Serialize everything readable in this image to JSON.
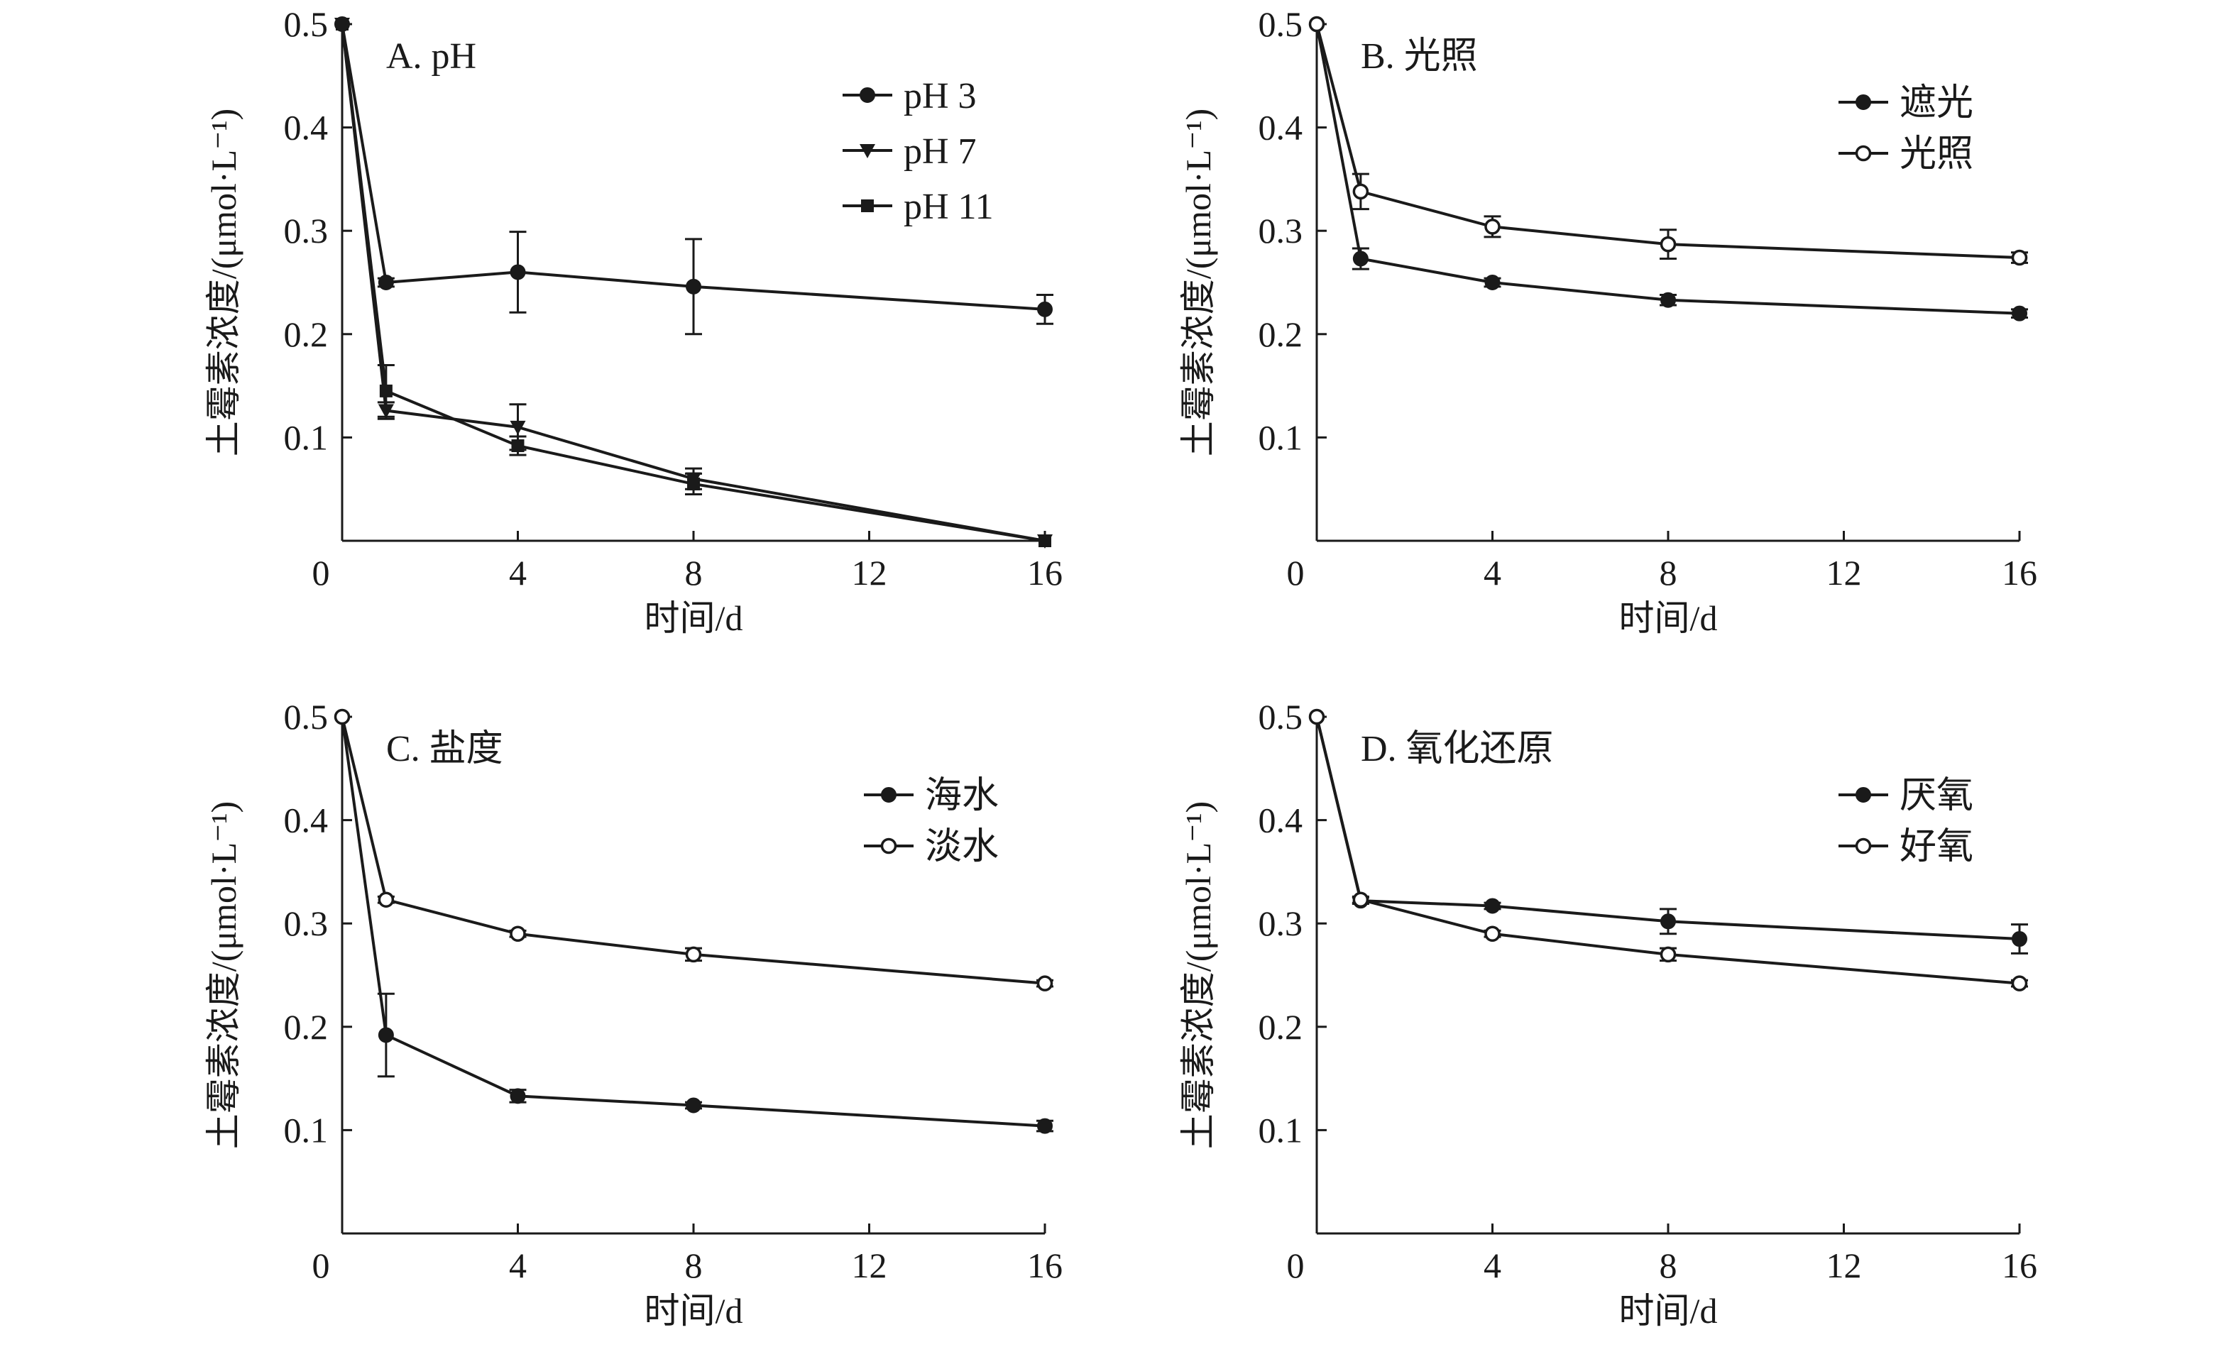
{
  "chart_data": [
    {
      "type": "line",
      "title": "A. pH",
      "xlabel": "时间/d",
      "ylabel": "土霉素浓度/(μmol·L⁻¹)",
      "xlim": [
        0,
        16
      ],
      "ylim": [
        0,
        0.5
      ],
      "xticks": [
        "0",
        "4",
        "8",
        "12",
        "16"
      ],
      "yticks": [
        "0.1",
        "0.2",
        "0.3",
        "0.4",
        "0.5"
      ],
      "legend_position": "top-right",
      "series": [
        {
          "name": "pH 3",
          "marker": "filled-circle",
          "x": [
            0,
            1,
            4,
            8,
            16
          ],
          "y": [
            0.5,
            0.25,
            0.26,
            0.246,
            0.224
          ],
          "err": [
            0,
            0.004,
            0.039,
            0.046,
            0.014
          ]
        },
        {
          "name": "pH 7",
          "marker": "filled-triangle-down",
          "x": [
            0,
            1,
            4,
            8,
            16
          ],
          "y": [
            0.5,
            0.126,
            0.11,
            0.06,
            0.0
          ],
          "err": [
            0,
            0.008,
            0.022,
            0.01,
            0.0
          ]
        },
        {
          "name": "pH 11",
          "marker": "filled-square",
          "x": [
            0,
            1,
            4,
            8,
            16
          ],
          "y": [
            0.5,
            0.145,
            0.092,
            0.055,
            0.0
          ],
          "err": [
            0,
            0.025,
            0.009,
            0.01,
            0.0
          ]
        }
      ]
    },
    {
      "type": "line",
      "title": "B. 光照",
      "xlabel": "时间/d",
      "ylabel": "土霉素浓度/(μmol·L⁻¹)",
      "xlim": [
        0,
        16
      ],
      "ylim": [
        0,
        0.5
      ],
      "xticks": [
        "0",
        "4",
        "8",
        "12",
        "16"
      ],
      "yticks": [
        "0.1",
        "0.2",
        "0.3",
        "0.4",
        "0.5"
      ],
      "legend_position": "top-right",
      "series": [
        {
          "name": "遮光",
          "marker": "filled-circle",
          "x": [
            0,
            1,
            4,
            8,
            16
          ],
          "y": [
            0.5,
            0.273,
            0.25,
            0.233,
            0.22
          ],
          "err": [
            0,
            0.01,
            0.004,
            0.005,
            0.004
          ]
        },
        {
          "name": "光照",
          "marker": "open-circle",
          "x": [
            0,
            1,
            4,
            8,
            16
          ],
          "y": [
            0.5,
            0.338,
            0.304,
            0.287,
            0.274
          ],
          "err": [
            0,
            0.017,
            0.01,
            0.014,
            0.005
          ]
        }
      ]
    },
    {
      "type": "line",
      "title": "C. 盐度",
      "xlabel": "时间/d",
      "ylabel": "土霉素浓度/(μmol·L⁻¹)",
      "xlim": [
        0,
        16
      ],
      "ylim": [
        0,
        0.5
      ],
      "xticks": [
        "0",
        "4",
        "8",
        "12",
        "16"
      ],
      "yticks": [
        "0.1",
        "0.2",
        "0.3",
        "0.4",
        "0.5"
      ],
      "legend_position": "top-right",
      "series": [
        {
          "name": "海水",
          "marker": "filled-circle",
          "x": [
            0,
            1,
            4,
            8,
            16
          ],
          "y": [
            0.5,
            0.192,
            0.133,
            0.124,
            0.104
          ],
          "err": [
            0,
            0.04,
            0.006,
            0.003,
            0.005
          ]
        },
        {
          "name": "淡水",
          "marker": "open-circle",
          "x": [
            0,
            1,
            4,
            8,
            16
          ],
          "y": [
            0.5,
            0.323,
            0.29,
            0.27,
            0.242
          ],
          "err": [
            0,
            0.003,
            0.003,
            0.006,
            0.003
          ]
        }
      ]
    },
    {
      "type": "line",
      "title": "D. 氧化还原",
      "xlabel": "时间/d",
      "ylabel": "土霉素浓度/(μmol·L⁻¹)",
      "xlim": [
        0,
        16
      ],
      "ylim": [
        0,
        0.5
      ],
      "xticks": [
        "0",
        "4",
        "8",
        "12",
        "16"
      ],
      "yticks": [
        "0.1",
        "0.2",
        "0.3",
        "0.4",
        "0.5"
      ],
      "legend_position": "top-right",
      "series": [
        {
          "name": "厌氧",
          "marker": "filled-circle",
          "x": [
            0,
            1,
            4,
            8,
            16
          ],
          "y": [
            0.5,
            0.322,
            0.317,
            0.302,
            0.285
          ],
          "err": [
            0,
            0.003,
            0.003,
            0.012,
            0.014
          ]
        },
        {
          "name": "好氧",
          "marker": "open-circle",
          "x": [
            0,
            1,
            4,
            8,
            16
          ],
          "y": [
            0.5,
            0.323,
            0.29,
            0.27,
            0.242
          ],
          "err": [
            0,
            0.003,
            0.003,
            0.006,
            0.003
          ]
        }
      ]
    }
  ]
}
